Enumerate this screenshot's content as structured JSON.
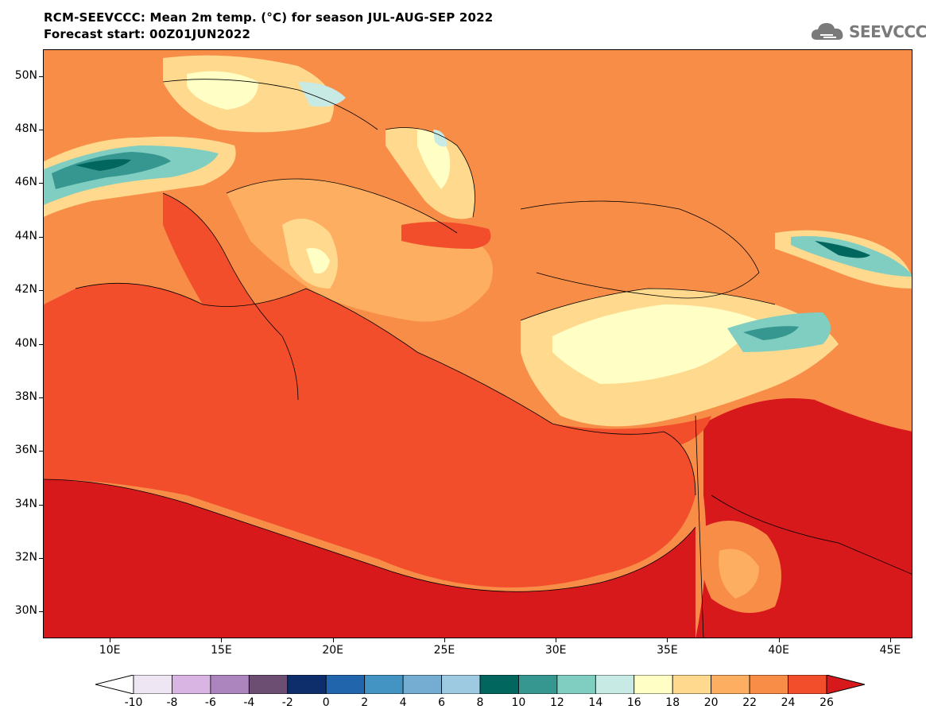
{
  "header": {
    "title_line1": "RCM-SEEVCCC: Mean 2m temp. (°C) for season JUL-AUG-SEP 2022",
    "title_line2": "Forecast start: 00Z01JUN2022"
  },
  "logo": {
    "text": "SEEVCCC",
    "icon": "cloud-icon",
    "color": "#7a7a7a"
  },
  "map": {
    "lat_labels": [
      "50N",
      "48N",
      "46N",
      "44N",
      "42N",
      "40N",
      "38N",
      "36N",
      "34N",
      "32N",
      "30N"
    ],
    "lon_labels": [
      "10E",
      "15E",
      "20E",
      "25E",
      "30E",
      "35E",
      "40E",
      "45E"
    ],
    "lat_values": [
      50,
      48,
      46,
      44,
      42,
      40,
      38,
      36,
      34,
      32,
      30
    ],
    "lon_values": [
      10,
      15,
      20,
      25,
      30,
      35,
      40,
      45
    ],
    "lat_range": [
      29,
      51
    ],
    "lon_range": [
      7,
      46
    ]
  },
  "colorbar": {
    "labels": [
      "-10",
      "-8",
      "-6",
      "-4",
      "-2",
      "0",
      "2",
      "4",
      "6",
      "8",
      "10",
      "12",
      "14",
      "16",
      "18",
      "20",
      "22",
      "24",
      "26"
    ],
    "colors": [
      "#ffffff",
      "#efe6f4",
      "#d8b5e3",
      "#ac85bf",
      "#6b4e72",
      "#0d2d6b",
      "#2166ac",
      "#4393c3",
      "#74add1",
      "#9ecae1",
      "#00665e",
      "#35978f",
      "#80cdc1",
      "#c7eae5",
      "#ffffc5",
      "#fed98e",
      "#fdae61",
      "#f88d48",
      "#f24e2c",
      "#d7191c"
    ]
  }
}
